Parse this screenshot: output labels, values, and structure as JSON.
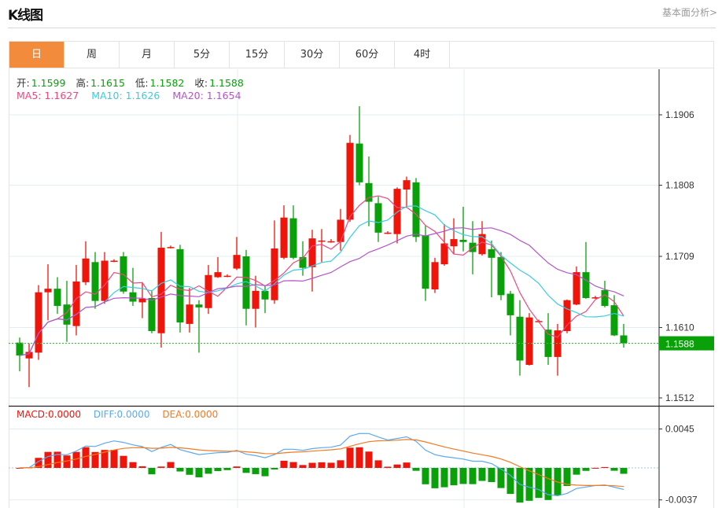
{
  "header": {
    "title": "K线图",
    "more_link": "基本面分析>"
  },
  "tabs": [
    {
      "label": "日",
      "active": true
    },
    {
      "label": "周"
    },
    {
      "label": "月"
    },
    {
      "label": "5分"
    },
    {
      "label": "15分"
    },
    {
      "label": "30分"
    },
    {
      "label": "60分"
    },
    {
      "label": "4时"
    }
  ],
  "ohlc_legend": {
    "open_label": "开:",
    "open": "1.1599",
    "high_label": "高:",
    "high": "1.1615",
    "low_label": "低:",
    "low": "1.1582",
    "close_label": "收:",
    "close": "1.1588"
  },
  "ma_legend": {
    "ma5": "MA5: 1.1627",
    "ma10": "MA10: 1.1626",
    "ma20": "MA20: 1.1654"
  },
  "macd_legend": {
    "macd": "MACD:0.0000",
    "diff": "DIFF:0.0000",
    "dea": "DEA:0.0000"
  },
  "colors": {
    "up": "#f0150a",
    "down": "#0aa00a",
    "ma5": "#e94a82",
    "ma10": "#3ccbe0",
    "ma20": "#b455c8",
    "diff": "#5aaaf0",
    "dea": "#f57a20",
    "accent": "#f28c3c"
  },
  "chart_data": {
    "type": "candlestick",
    "price_axis": {
      "ticks": [
        "1.1906",
        "1.1808",
        "1.1709",
        "1.1610",
        "1.1512"
      ],
      "range": [
        1.1512,
        1.1906
      ]
    },
    "current_price": "1.1588",
    "macd_axis": {
      "ticks": [
        "0.0045",
        "-0.0037"
      ],
      "range": [
        -0.0037,
        0.0045
      ]
    },
    "candles": [
      [
        1.1589,
        1.1596,
        1.1549,
        1.1571
      ],
      [
        1.1567,
        1.1588,
        1.1527,
        1.1576
      ],
      [
        1.1575,
        1.1669,
        1.1565,
        1.1659
      ],
      [
        1.1659,
        1.1698,
        1.162,
        1.1664
      ],
      [
        1.1664,
        1.168,
        1.1629,
        1.164
      ],
      [
        1.1642,
        1.1675,
        1.159,
        1.1614
      ],
      [
        1.1612,
        1.1697,
        1.1599,
        1.1674
      ],
      [
        1.1673,
        1.173,
        1.1669,
        1.1706
      ],
      [
        1.1701,
        1.1715,
        1.1636,
        1.1647
      ],
      [
        1.1647,
        1.1715,
        1.1643,
        1.1703
      ],
      [
        1.1703,
        1.1705,
        1.1701,
        1.1703
      ],
      [
        1.1709,
        1.1715,
        1.1657,
        1.166
      ],
      [
        1.1659,
        1.1693,
        1.164,
        1.1646
      ],
      [
        1.1645,
        1.1673,
        1.1623,
        1.165
      ],
      [
        1.1651,
        1.1662,
        1.1602,
        1.1605
      ],
      [
        1.1602,
        1.1743,
        1.1582,
        1.1721
      ],
      [
        1.1722,
        1.1724,
        1.172,
        1.1722
      ],
      [
        1.1719,
        1.1725,
        1.1603,
        1.1617
      ],
      [
        1.1615,
        1.1665,
        1.1603,
        1.1642
      ],
      [
        1.1642,
        1.1648,
        1.1575,
        1.1638
      ],
      [
        1.1637,
        1.1697,
        1.1629,
        1.1683
      ],
      [
        1.168,
        1.1708,
        1.1679,
        1.1687
      ],
      [
        1.1682,
        1.1684,
        1.168,
        1.1682
      ],
      [
        1.1692,
        1.1736,
        1.169,
        1.1711
      ],
      [
        1.1709,
        1.1718,
        1.1613,
        1.1636
      ],
      [
        1.1636,
        1.1682,
        1.161,
        1.1661
      ],
      [
        1.1661,
        1.1669,
        1.163,
        1.1649
      ],
      [
        1.1648,
        1.1759,
        1.1643,
        1.172
      ],
      [
        1.1707,
        1.178,
        1.1705,
        1.1763
      ],
      [
        1.1762,
        1.178,
        1.1705,
        1.1707
      ],
      [
        1.1708,
        1.173,
        1.1682,
        1.1693
      ],
      [
        1.1694,
        1.1746,
        1.166,
        1.1734
      ],
      [
        1.1731,
        1.1747,
        1.1701,
        1.1731
      ],
      [
        1.173,
        1.1733,
        1.1728,
        1.173
      ],
      [
        1.1729,
        1.1775,
        1.1717,
        1.176
      ],
      [
        1.176,
        1.1878,
        1.1757,
        1.1867
      ],
      [
        1.1866,
        1.1918,
        1.1808,
        1.1812
      ],
      [
        1.1811,
        1.1848,
        1.1751,
        1.1785
      ],
      [
        1.1783,
        1.1792,
        1.1729,
        1.1742
      ],
      [
        1.1742,
        1.1744,
        1.174,
        1.1742
      ],
      [
        1.174,
        1.1805,
        1.1727,
        1.1803
      ],
      [
        1.1802,
        1.182,
        1.1778,
        1.1815
      ],
      [
        1.1812,
        1.1818,
        1.1729,
        1.1736
      ],
      [
        1.1738,
        1.1752,
        1.1647,
        1.1664
      ],
      [
        1.1663,
        1.1707,
        1.1658,
        1.1701
      ],
      [
        1.1698,
        1.1754,
        1.1696,
        1.1727
      ],
      [
        1.1723,
        1.1762,
        1.1712,
        1.1733
      ],
      [
        1.1732,
        1.1778,
        1.1716,
        1.1729
      ],
      [
        1.1728,
        1.1758,
        1.1684,
        1.1715
      ],
      [
        1.1712,
        1.1758,
        1.171,
        1.174
      ],
      [
        1.1719,
        1.1731,
        1.1652,
        1.1707
      ],
      [
        1.1708,
        1.1715,
        1.1648,
        1.1655
      ],
      [
        1.1657,
        1.1661,
        1.1599,
        1.1627
      ],
      [
        1.1625,
        1.1648,
        1.1543,
        1.1564
      ],
      [
        1.1558,
        1.163,
        1.1557,
        1.1624
      ],
      [
        1.1619,
        1.1621,
        1.1617,
        1.1619
      ],
      [
        1.1607,
        1.163,
        1.1558,
        1.1569
      ],
      [
        1.1569,
        1.1615,
        1.1543,
        1.1606
      ],
      [
        1.1605,
        1.1649,
        1.1602,
        1.1648
      ],
      [
        1.1642,
        1.1695,
        1.1641,
        1.1687
      ],
      [
        1.1687,
        1.1729,
        1.165,
        1.1651
      ],
      [
        1.1652,
        1.1654,
        1.165,
        1.1652
      ],
      [
        1.1662,
        1.1675,
        1.1638,
        1.164
      ],
      [
        1.1641,
        1.1655,
        1.1598,
        1.1599
      ],
      [
        1.1599,
        1.1615,
        1.1582,
        1.1588
      ]
    ],
    "candle_format": [
      "open",
      "high",
      "low",
      "close"
    ],
    "moving_averages": [
      "MA5",
      "MA10",
      "MA20"
    ],
    "indicator": "MACD",
    "grid": true
  }
}
